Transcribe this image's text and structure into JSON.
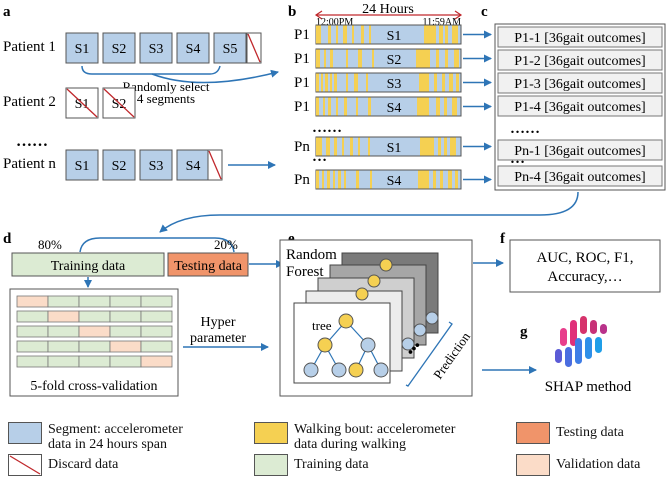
{
  "panels": {
    "a": "a",
    "b": "b",
    "c": "c",
    "d": "d",
    "e": "e",
    "f": "f",
    "g": "g"
  },
  "panel_a": {
    "patients": [
      {
        "label": "Patient 1",
        "segments": [
          "S1",
          "S2",
          "S3",
          "S4",
          "S5"
        ],
        "discarded": [
          5
        ]
      },
      {
        "label": "Patient 2",
        "segments": [
          "S1",
          "S2"
        ],
        "discarded": [
          1,
          2
        ]
      },
      {
        "label": "Patient n",
        "segments": [
          "S1",
          "S2",
          "S3",
          "S4"
        ],
        "discarded": [
          5
        ]
      }
    ],
    "ellipsis": "……",
    "select_text": [
      "Randomly select",
      "4 segments"
    ]
  },
  "panel_b": {
    "span_label": "24 Hours",
    "start_time": "12:00PM",
    "end_time": "11:59AM",
    "rows": [
      {
        "patient": "P1",
        "segment": "S1"
      },
      {
        "patient": "P1",
        "segment": "S2"
      },
      {
        "patient": "P1",
        "segment": "S3"
      },
      {
        "patient": "P1",
        "segment": "S4"
      },
      {
        "patient": "Pn",
        "segment": "S1"
      },
      {
        "patient": "Pn",
        "segment": "S4"
      }
    ],
    "ellipsis": "……",
    "short_ellipsis": "…"
  },
  "panel_c": {
    "outcomes": [
      "P1-1 [36gait outcomes]",
      "P1-2 [36gait outcomes]",
      "P1-3 [36gait outcomes]",
      "P1-4 [36gait outcomes]",
      "Pn-1 [36gait outcomes]",
      "Pn-4 [36gait outcomes]"
    ],
    "ellipsis": "……",
    "short_ellipsis": "…"
  },
  "panel_d": {
    "train_pct": "80%",
    "test_pct": "20%",
    "training_label": "Training data",
    "testing_label": "Testing data",
    "cv_label": "5-fold cross-validation",
    "hyper_label": [
      "Hyper",
      "parameter"
    ]
  },
  "panel_e": {
    "title": [
      "Random",
      "Forest"
    ],
    "tree_label": "tree",
    "prediction_label": "Prediction",
    "dots": "•••"
  },
  "panel_f": {
    "metrics": [
      "AUC, ROC, F1,",
      "Accuracy,…"
    ]
  },
  "panel_g": {
    "label": "SHAP method"
  },
  "legend": {
    "segment": [
      "Segment: accelerometer",
      "data in 24 hours span"
    ],
    "walking": [
      "Walking bout: accelerometer",
      "data during walking"
    ],
    "testing": "Testing data",
    "discard": "Discard data",
    "training": "Training data",
    "validation": "Validation data"
  },
  "colors": {
    "segment": "#b7cfe8",
    "walking": "#f5d052",
    "testing": "#f0946a",
    "training": "#dcebd3",
    "validation": "#fbdcc8",
    "discard_line": "#c0282c",
    "arrow": "#2e75b6",
    "outcome_fill": "#f1f1f1"
  }
}
